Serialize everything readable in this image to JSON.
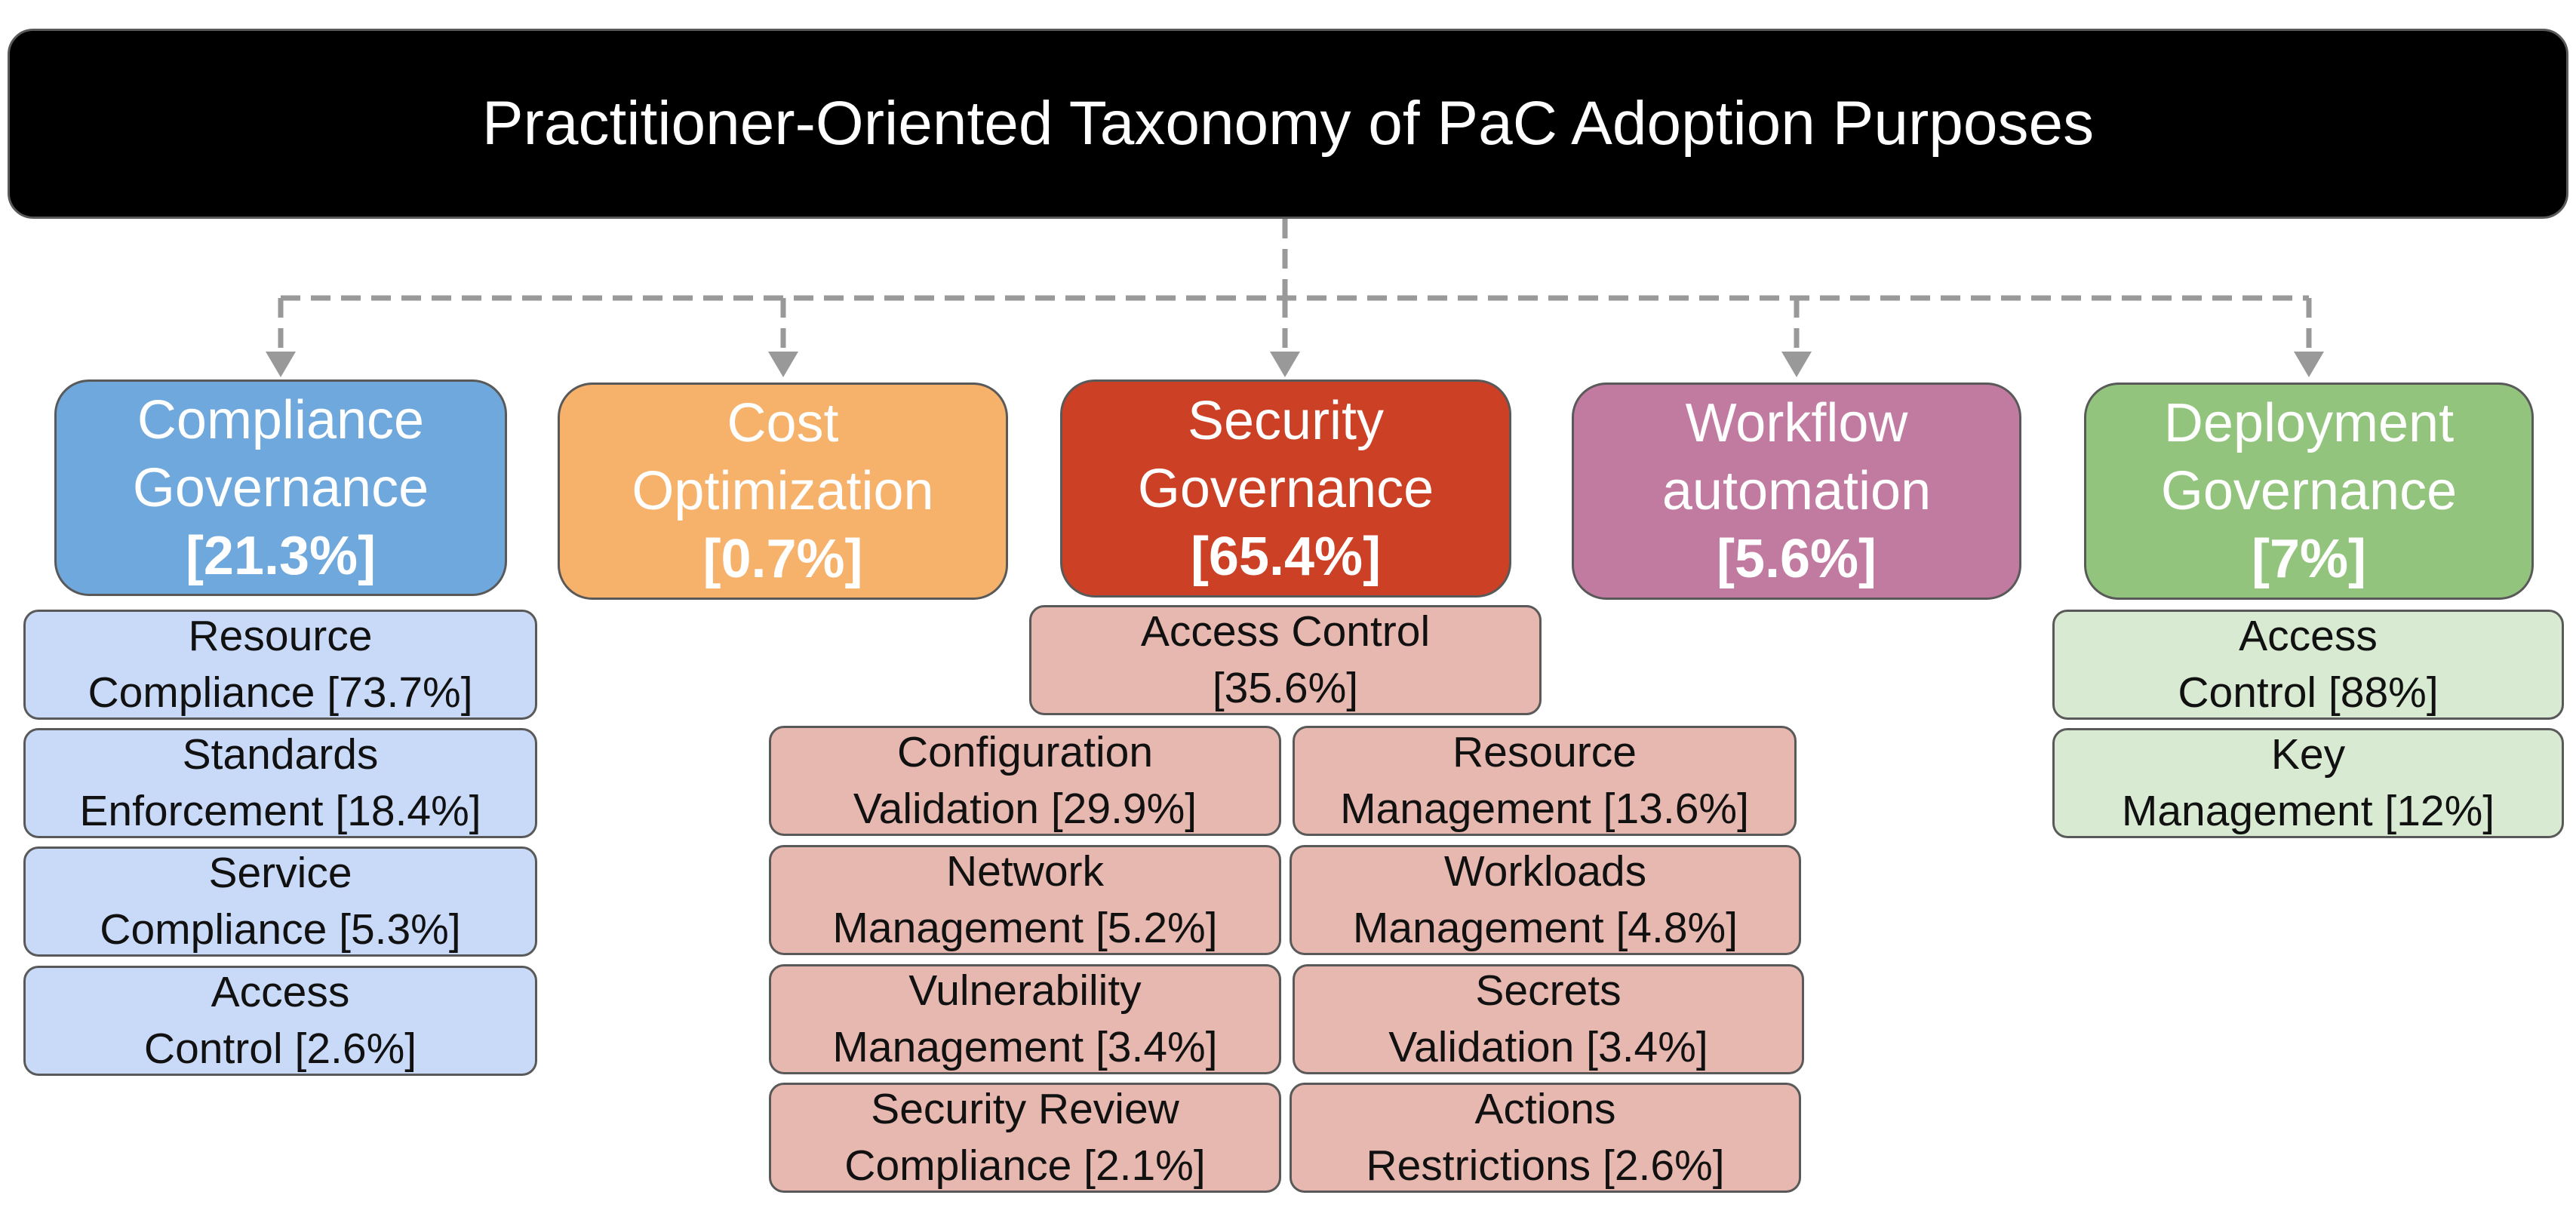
{
  "title": "Practitioner-Oriented Taxonomy of PaC Adoption Purposes",
  "colors": {
    "root_bg": "#000000",
    "connector": "#999999",
    "compliance": "#6fa8dc",
    "compliance_sub": "#c9daf8",
    "cost": "#f6b26b",
    "security": "#cc4125",
    "security_sub": "#e6b8af",
    "workflow": "#c27ba0",
    "deployment": "#93c47d",
    "deployment_sub": "#d9ead3"
  },
  "categories": [
    {
      "line1": "Compliance",
      "line2": "Governance",
      "pct": "[21.3%]",
      "subs": [
        {
          "line1": "Resource",
          "line2": "Compliance [73.7%]"
        },
        {
          "line1": "Standards",
          "line2": "Enforcement [18.4%]"
        },
        {
          "line1": "Service",
          "line2": "Compliance [5.3%]"
        },
        {
          "line1": "Access",
          "line2": "Control [2.6%]"
        }
      ]
    },
    {
      "line1": "Cost",
      "line2": "Optimization",
      "pct": "[0.7%]",
      "subs": []
    },
    {
      "line1": "Security",
      "line2": "Governance",
      "pct": "[65.4%]",
      "top_sub": {
        "line1": "Access Control",
        "line2": "[35.6%]"
      },
      "left_subs": [
        {
          "line1": "Configuration",
          "line2": "Validation [29.9%]"
        },
        {
          "line1": "Network",
          "line2": "Management [5.2%]"
        },
        {
          "line1": "Vulnerability",
          "line2": "Management [3.4%]"
        },
        {
          "line1": "Security Review",
          "line2": "Compliance [2.1%]"
        }
      ],
      "right_subs": [
        {
          "line1": "Resource",
          "line2": "Management [13.6%]"
        },
        {
          "line1": "Workloads",
          "line2": "Management [4.8%]"
        },
        {
          "line1": "Secrets",
          "line2": "Validation [3.4%]"
        },
        {
          "line1": "Actions",
          "line2": "Restrictions [2.6%]"
        }
      ]
    },
    {
      "line1": "Workflow",
      "line2": "automation",
      "pct": "[5.6%]",
      "subs": []
    },
    {
      "line1": "Deployment",
      "line2": "Governance",
      "pct": "[7%]",
      "subs": [
        {
          "line1": "Access",
          "line2": "Control [88%]"
        },
        {
          "line1": "Key",
          "line2": "Management [12%]"
        }
      ]
    }
  ]
}
